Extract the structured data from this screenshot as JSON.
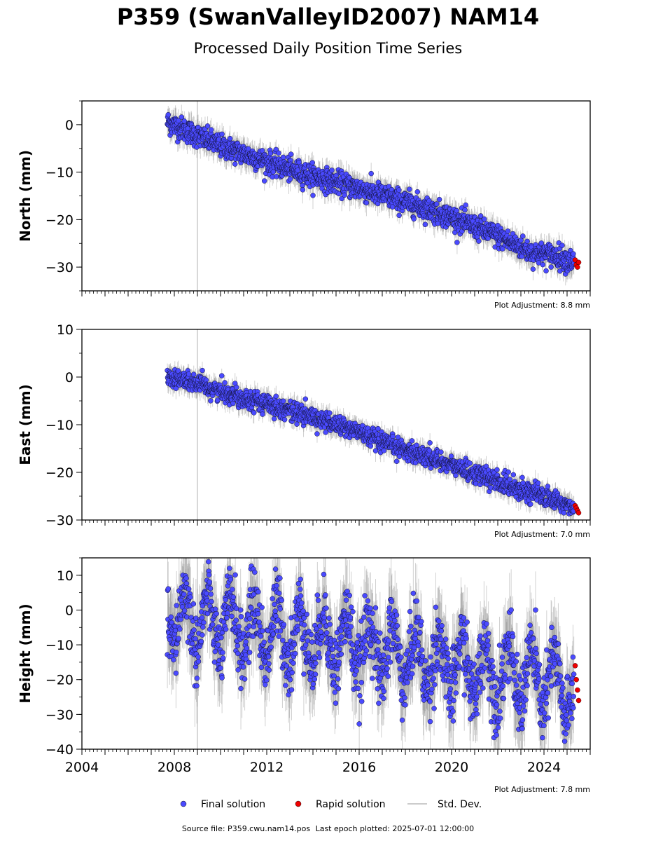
{
  "title": "P359 (SwanValleyID2007) NAM14",
  "subtitle": "Processed Daily Position Time Series",
  "footer": {
    "source_label": "Source file: P359.cwu.nam14.pos",
    "last_epoch_label": "Last epoch plotted: 2025-07-01 12:00:00"
  },
  "legend": {
    "placement": "bottom-center",
    "items": [
      {
        "label": "Final solution",
        "color": "#4a4aff",
        "marker": "circle"
      },
      {
        "label": "Rapid solution",
        "color": "#ee0000",
        "marker": "circle"
      },
      {
        "label": "Std. Dev.",
        "color": "#bbbbbb",
        "marker": "line"
      }
    ]
  },
  "chart_data": [
    {
      "type": "scatter",
      "ylabel": "North (mm)",
      "xlim": [
        2004,
        2026
      ],
      "ylim": [
        -35,
        5
      ],
      "yticks": [
        0,
        -10,
        -20,
        -30
      ],
      "yticklabels": [
        "0",
        "−10",
        "−20",
        "−30"
      ],
      "xticklabels": [],
      "adjustment_label": "Plot Adjustment: 8.8 mm",
      "final_solution_trend": {
        "x": [
          2007.7,
          2010,
          2013,
          2016,
          2018.5,
          2020,
          2022,
          2023.5,
          2024.5,
          2025.3
        ],
        "y": [
          0.5,
          -4.5,
          -9.5,
          -13.5,
          -17,
          -19.5,
          -23.5,
          -27,
          -27.5,
          -29
        ]
      },
      "final_solution_scatter_mm": 1.2,
      "rapid_solution": {
        "x": [
          2025.35,
          2025.4,
          2025.45,
          2025.5
        ],
        "y": [
          -28.5,
          -29.5,
          -30,
          -29
        ]
      }
    },
    {
      "type": "scatter",
      "ylabel": "East (mm)",
      "xlim": [
        2004,
        2026
      ],
      "ylim": [
        -30,
        10
      ],
      "yticks": [
        10,
        0,
        -10,
        -20,
        -30
      ],
      "yticklabels": [
        "10",
        "0",
        "−10",
        "−20",
        "−30"
      ],
      "xticklabels": [],
      "adjustment_label": "Plot Adjustment: 7.0 mm",
      "final_solution_trend": {
        "x": [
          2007.7,
          2010,
          2013,
          2016,
          2017,
          2017.5,
          2018.5,
          2020,
          2022,
          2024,
          2025.3
        ],
        "y": [
          0.3,
          -3,
          -7,
          -11.5,
          -14,
          -14.5,
          -16,
          -18.5,
          -22,
          -25,
          -27.5
        ]
      },
      "final_solution_scatter_mm": 1.0,
      "rapid_solution": {
        "x": [
          2025.35,
          2025.4,
          2025.45,
          2025.5
        ],
        "y": [
          -27,
          -27.5,
          -28,
          -28.5
        ]
      }
    },
    {
      "type": "scatter",
      "ylabel": "Height (mm)",
      "xlim": [
        2004,
        2026
      ],
      "ylim": [
        -40,
        15
      ],
      "yticks": [
        10,
        0,
        -10,
        -20,
        -30,
        -40
      ],
      "yticklabels": [
        "10",
        "0",
        "−10",
        "−20",
        "−30",
        "−40"
      ],
      "xticks": [
        2004,
        2008,
        2012,
        2016,
        2020,
        2024
      ],
      "xticklabels": [
        "2004",
        "2008",
        "2012",
        "2016",
        "2020",
        "2024"
      ],
      "adjustment_label": "Plot Adjustment: 7.8 mm",
      "final_solution_trend": {
        "x": [
          2007.7,
          2012,
          2016,
          2020,
          2024,
          2025.3
        ],
        "y": [
          -2,
          -6,
          -10,
          -16,
          -20,
          -24
        ]
      },
      "final_solution_seasonal_amplitude_mm": 8,
      "final_solution_scatter_mm": 5,
      "rapid_solution": {
        "x": [
          2025.35,
          2025.4,
          2025.45,
          2025.5
        ],
        "y": [
          -16,
          -20,
          -23,
          -26
        ]
      }
    }
  ]
}
